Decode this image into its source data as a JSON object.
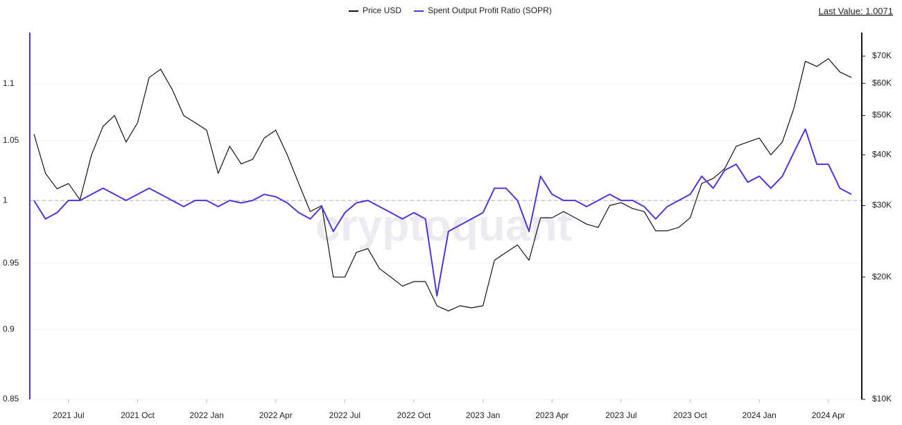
{
  "chart_data": {
    "type": "line",
    "annotation": "Last Value: 1.0071",
    "watermark": "cryptoquant",
    "categories": [
      null,
      null,
      null,
      "2021 Jul",
      null,
      null,
      null,
      null,
      null,
      "2021 Oct",
      null,
      null,
      null,
      null,
      null,
      "2022 Jan",
      null,
      null,
      null,
      null,
      null,
      "2022 Apr",
      null,
      null,
      null,
      null,
      null,
      "2022 Jul",
      null,
      null,
      null,
      null,
      null,
      "2022 Oct",
      null,
      null,
      null,
      null,
      null,
      "2023 Jan",
      null,
      null,
      null,
      null,
      null,
      "2023 Apr",
      null,
      null,
      null,
      null,
      null,
      "2023 Jul",
      null,
      null,
      null,
      null,
      null,
      "2023 Oct",
      null,
      null,
      null,
      null,
      null,
      "2024 Jan",
      null,
      null,
      null,
      null,
      null,
      "2024 Apr",
      null,
      null
    ],
    "series": [
      {
        "name": "Price USD",
        "color": "#111111",
        "axis": "y2",
        "values": [
          45000,
          36000,
          33000,
          34000,
          31000,
          40000,
          47000,
          50000,
          43000,
          48000,
          62000,
          65000,
          58000,
          50000,
          48000,
          46000,
          36000,
          42000,
          38000,
          39000,
          44000,
          46000,
          40000,
          34000,
          29000,
          30000,
          20000,
          20000,
          23000,
          23500,
          21000,
          20000,
          19000,
          19500,
          19500,
          17000,
          16500,
          17000,
          16800,
          17000,
          22000,
          23000,
          24000,
          22000,
          28000,
          28000,
          29000,
          28000,
          27000,
          26500,
          30000,
          30500,
          29500,
          29000,
          26000,
          26000,
          26500,
          28000,
          34000,
          35000,
          37000,
          42000,
          43000,
          44000,
          40000,
          43000,
          52000,
          68000,
          66000,
          69000,
          64000,
          62000
        ]
      },
      {
        "name": "Spent Output Profit Ratio (SOPR)",
        "color": "#4a35e0",
        "axis": "y",
        "values": [
          1.0,
          0.985,
          0.99,
          1.0,
          1.0,
          1.005,
          1.01,
          1.005,
          1.0,
          1.005,
          1.01,
          1.005,
          1.0,
          0.995,
          1.0,
          1.0,
          0.995,
          1.0,
          0.998,
          1.0,
          1.005,
          1.003,
          0.998,
          0.99,
          0.985,
          0.995,
          0.975,
          0.99,
          0.998,
          1.0,
          0.995,
          0.99,
          0.985,
          0.99,
          0.985,
          0.925,
          0.975,
          0.98,
          0.985,
          0.99,
          1.01,
          1.01,
          1.0,
          0.975,
          1.02,
          1.005,
          1.0,
          1.0,
          0.995,
          1.0,
          1.005,
          1.0,
          1.0,
          0.995,
          0.985,
          0.995,
          1.0,
          1.005,
          1.02,
          1.01,
          1.025,
          1.03,
          1.015,
          1.02,
          1.01,
          1.02,
          1.04,
          1.06,
          1.03,
          1.03,
          1.01,
          1.005
        ]
      }
    ],
    "ylim": [
      0.85,
      1.147
    ],
    "yticks": [
      0.85,
      0.9,
      0.95,
      1,
      1.05,
      1.1
    ],
    "ylog": true,
    "y2lim": [
      10000,
      80000
    ],
    "y2ticks": [
      {
        "value": 10000,
        "label": "$10K"
      },
      {
        "value": 20000,
        "label": "$20K"
      },
      {
        "value": 30000,
        "label": "$30K"
      },
      {
        "value": 40000,
        "label": "$40K"
      },
      {
        "value": 50000,
        "label": "$50K"
      },
      {
        "value": 60000,
        "label": "$60K"
      },
      {
        "value": 70000,
        "label": "$70K"
      }
    ],
    "y2log": true,
    "reference_line": 1,
    "grid": true
  }
}
